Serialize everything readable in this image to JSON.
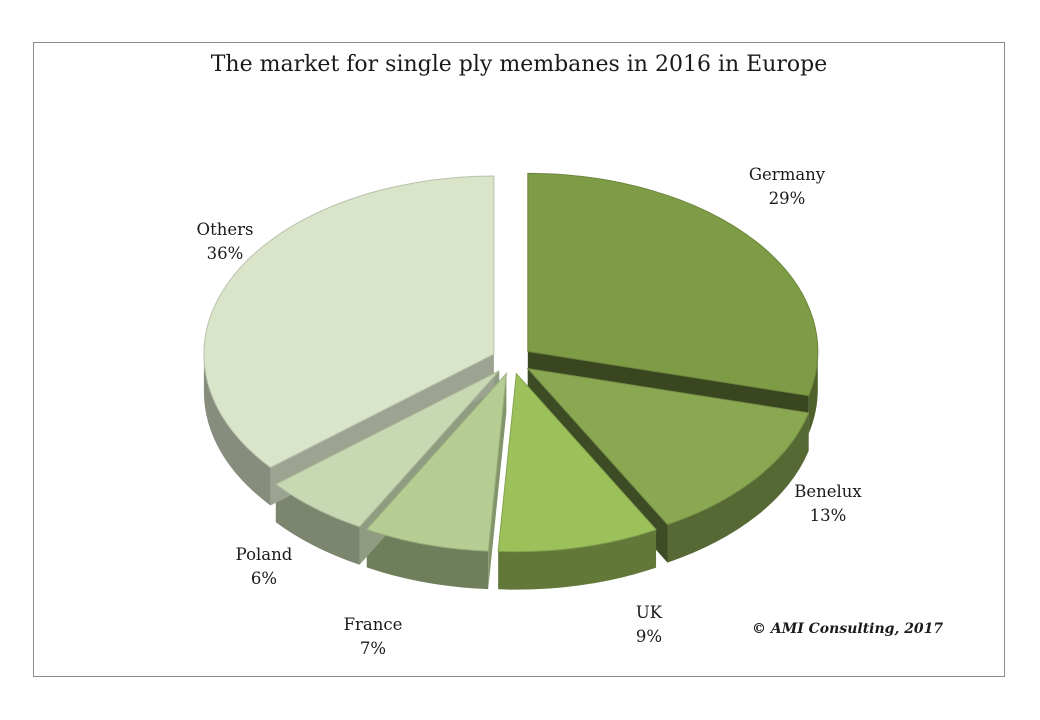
{
  "chart_data": {
    "type": "pie",
    "title": "The market for single ply membanes in 2016 in Europe",
    "slices": [
      {
        "label": "Germany",
        "value": 29,
        "value_label": "29%",
        "color": "#7e9c46"
      },
      {
        "label": "Benelux",
        "value": 13,
        "value_label": "13%",
        "color": "#8aa852"
      },
      {
        "label": "UK",
        "value": 9,
        "value_label": "9%",
        "color": "#9cc15b"
      },
      {
        "label": "France",
        "value": 7,
        "value_label": "7%",
        "color": "#b5cd93"
      },
      {
        "label": "Poland",
        "value": 6,
        "value_label": "6%",
        "color": "#c8d8b3"
      },
      {
        "label": "Others",
        "value": 36,
        "value_label": "36%",
        "color": "#d9e4c9"
      }
    ],
    "style": "3d-exploded",
    "legend": "none"
  },
  "footer": {
    "copyright": "© AMI Consulting, 2017"
  }
}
